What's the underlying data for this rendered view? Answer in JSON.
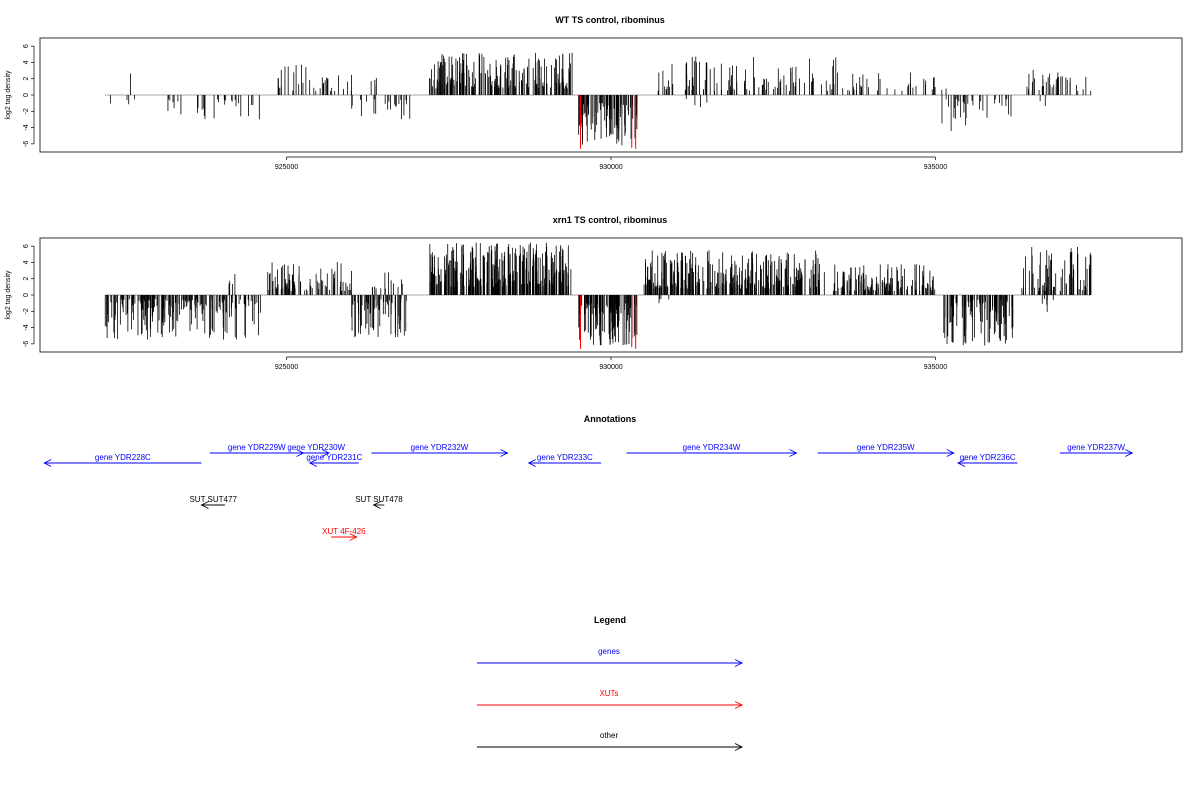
{
  "chart_data": [
    {
      "type": "bar",
      "title": "WT TS control, ribominus",
      "xlabel": "",
      "ylabel": "log2 tag density",
      "xlim": [
        921200,
        938800
      ],
      "ylim": [
        -7,
        7
      ],
      "yticks": [
        -6,
        -4,
        -2,
        0,
        2,
        4,
        6
      ],
      "xticks": [
        925000,
        930000,
        935000
      ],
      "segments": [
        {
          "range": [
            922200,
            923600
          ],
          "sign": -1,
          "density": 0.12,
          "mag": [
            0.5,
            2.6
          ]
        },
        {
          "range": [
            922500,
            922700
          ],
          "sign": 1,
          "density": 0.05,
          "mag": [
            2.4,
            2.8
          ]
        },
        {
          "range": [
            923600,
            924600
          ],
          "sign": -1,
          "density": 0.35,
          "mag": [
            0.5,
            3.0
          ]
        },
        {
          "range": [
            924800,
            926000
          ],
          "sign": 1,
          "density": 0.45,
          "mag": [
            0.5,
            3.8
          ]
        },
        {
          "range": [
            926000,
            926900
          ],
          "sign": -1,
          "density": 0.4,
          "mag": [
            0.5,
            3.2
          ]
        },
        {
          "range": [
            926200,
            926400
          ],
          "sign": 1,
          "density": 0.3,
          "mag": [
            0.5,
            2.6
          ]
        },
        {
          "range": [
            927200,
            929400
          ],
          "sign": 1,
          "density": 1.4,
          "mag": [
            0.8,
            5.2
          ]
        },
        {
          "range": [
            929500,
            930400
          ],
          "sign": -1,
          "density": 1.6,
          "mag": [
            1.0,
            6.2
          ]
        },
        {
          "range": [
            930700,
            933500
          ],
          "sign": 1,
          "density": 0.55,
          "mag": [
            0.5,
            4.8
          ]
        },
        {
          "range": [
            931100,
            931600
          ],
          "sign": -1,
          "density": 0.12,
          "mag": [
            0.5,
            1.5
          ]
        },
        {
          "range": [
            933500,
            935000
          ],
          "sign": 1,
          "density": 0.35,
          "mag": [
            0.5,
            2.8
          ]
        },
        {
          "range": [
            934800,
            935200
          ],
          "sign": 1,
          "density": 0.1,
          "mag": [
            0.5,
            2.2
          ]
        },
        {
          "range": [
            935100,
            936200
          ],
          "sign": -1,
          "density": 0.45,
          "mag": [
            0.5,
            4.8
          ]
        },
        {
          "range": [
            936400,
            937400
          ],
          "sign": 1,
          "density": 0.55,
          "mag": [
            0.5,
            3.6
          ]
        },
        {
          "range": [
            936600,
            936900
          ],
          "sign": -1,
          "density": 0.1,
          "mag": [
            0.5,
            3.0
          ]
        }
      ],
      "highlight_bars": [
        {
          "x": 929530,
          "y": -6.6
        },
        {
          "x": 930320,
          "y": -6.5
        },
        {
          "x": 930380,
          "y": -6.6
        }
      ],
      "colors": {
        "bars": "#000000",
        "highlight": "#ff0000"
      }
    },
    {
      "type": "bar",
      "title": "xrn1 TS control, ribominus",
      "xlabel": "",
      "ylabel": "log2 tag density",
      "xlim": [
        921200,
        938800
      ],
      "ylim": [
        -7,
        7
      ],
      "yticks": [
        -6,
        -4,
        -2,
        0,
        2,
        4,
        6
      ],
      "xticks": [
        925000,
        930000,
        935000
      ],
      "segments": [
        {
          "range": [
            922200,
            924600
          ],
          "sign": -1,
          "density": 1.2,
          "mag": [
            0.5,
            5.5
          ]
        },
        {
          "range": [
            924100,
            924300
          ],
          "sign": 1,
          "density": 0.3,
          "mag": [
            1.0,
            2.6
          ]
        },
        {
          "range": [
            924700,
            926000
          ],
          "sign": 1,
          "density": 1.0,
          "mag": [
            0.5,
            4.2
          ]
        },
        {
          "range": [
            926000,
            926900
          ],
          "sign": -1,
          "density": 1.1,
          "mag": [
            0.5,
            5.2
          ]
        },
        {
          "range": [
            926300,
            926800
          ],
          "sign": 1,
          "density": 0.4,
          "mag": [
            0.5,
            2.8
          ]
        },
        {
          "range": [
            927200,
            929400
          ],
          "sign": 1,
          "density": 2.0,
          "mag": [
            1.0,
            6.5
          ]
        },
        {
          "range": [
            929500,
            930400
          ],
          "sign": -1,
          "density": 2.0,
          "mag": [
            1.0,
            6.2
          ]
        },
        {
          "range": [
            930500,
            933300
          ],
          "sign": 1,
          "density": 1.6,
          "mag": [
            0.8,
            5.5
          ]
        },
        {
          "range": [
            930600,
            931000
          ],
          "sign": -1,
          "density": 0.15,
          "mag": [
            0.5,
            1.2
          ]
        },
        {
          "range": [
            933400,
            935000
          ],
          "sign": 1,
          "density": 1.2,
          "mag": [
            0.5,
            3.8
          ]
        },
        {
          "range": [
            935100,
            936200
          ],
          "sign": -1,
          "density": 1.4,
          "mag": [
            0.5,
            6.5
          ]
        },
        {
          "range": [
            936300,
            937400
          ],
          "sign": 1,
          "density": 1.0,
          "mag": [
            0.5,
            6.0
          ]
        },
        {
          "range": [
            936600,
            936900
          ],
          "sign": -1,
          "density": 0.3,
          "mag": [
            0.5,
            2.5
          ]
        }
      ],
      "highlight_bars": [
        {
          "x": 929530,
          "y": -6.6
        },
        {
          "x": 930320,
          "y": -6.4
        },
        {
          "x": 930380,
          "y": -6.6
        }
      ],
      "colors": {
        "bars": "#000000",
        "highlight": "#ff0000"
      }
    }
  ],
  "annotations": {
    "title": "Annotations",
    "items": [
      {
        "label": "gene YDR228C",
        "start": 921300,
        "end": 925000,
        "strand": "-",
        "row": 2,
        "kind": "genes"
      },
      {
        "label": "gene YDR229W",
        "start": 925200,
        "end": 927400,
        "strand": "+",
        "row": 1,
        "kind": "genes"
      },
      {
        "label": "gene YDR230W",
        "start": 927400,
        "end": 928000,
        "strand": "+",
        "row": 1,
        "kind": "genes"
      },
      {
        "label": "gene YDR231C",
        "start": 927550,
        "end": 928700,
        "strand": "-",
        "row": 2,
        "kind": "genes"
      },
      {
        "label": "gene YDR232W",
        "start": 929000,
        "end": 932200,
        "strand": "+",
        "row": 1,
        "kind": "genes"
      },
      {
        "label": "gene YDR233C",
        "start": 932700,
        "end": 934400,
        "strand": "-",
        "row": 2,
        "kind": "genes"
      },
      {
        "label": "gene YDR234W",
        "start": 935000,
        "end": 939000,
        "strand": "+",
        "row": 1,
        "kind": "genes"
      },
      {
        "label": "gene YDR235W",
        "start": 939500,
        "end": 942700,
        "strand": "+",
        "row": 1,
        "kind": "genes"
      },
      {
        "label": "gene YDR236C",
        "start": 942800,
        "end": 944200,
        "strand": "-",
        "row": 2,
        "kind": "genes"
      },
      {
        "label": "gene YDR237W",
        "start": 945200,
        "end": 946900,
        "strand": "+",
        "row": 1,
        "kind": "genes"
      },
      {
        "label": "SUT SUT477",
        "start": 925000,
        "end": 925550,
        "strand": "-",
        "row": 3,
        "kind": "other"
      },
      {
        "label": "SUT SUT478",
        "start": 929050,
        "end": 929300,
        "strand": "-",
        "row": 3,
        "kind": "other"
      },
      {
        "label": "XUT 4F-426",
        "start": 928050,
        "end": 928650,
        "strand": "+",
        "row": 4,
        "kind": "XUTs"
      }
    ],
    "xlim": [
      921200,
      947200
    ]
  },
  "legend": {
    "title": "Legend",
    "entries": [
      {
        "label": "genes",
        "kind": "genes"
      },
      {
        "label": "XUTs",
        "kind": "XUTs"
      },
      {
        "label": "other",
        "kind": "other"
      }
    ]
  },
  "colors": {
    "genes": "#0000ff",
    "XUTs": "#ff0000",
    "other": "#000000",
    "axis": "#000000",
    "baseline": "#888888"
  }
}
